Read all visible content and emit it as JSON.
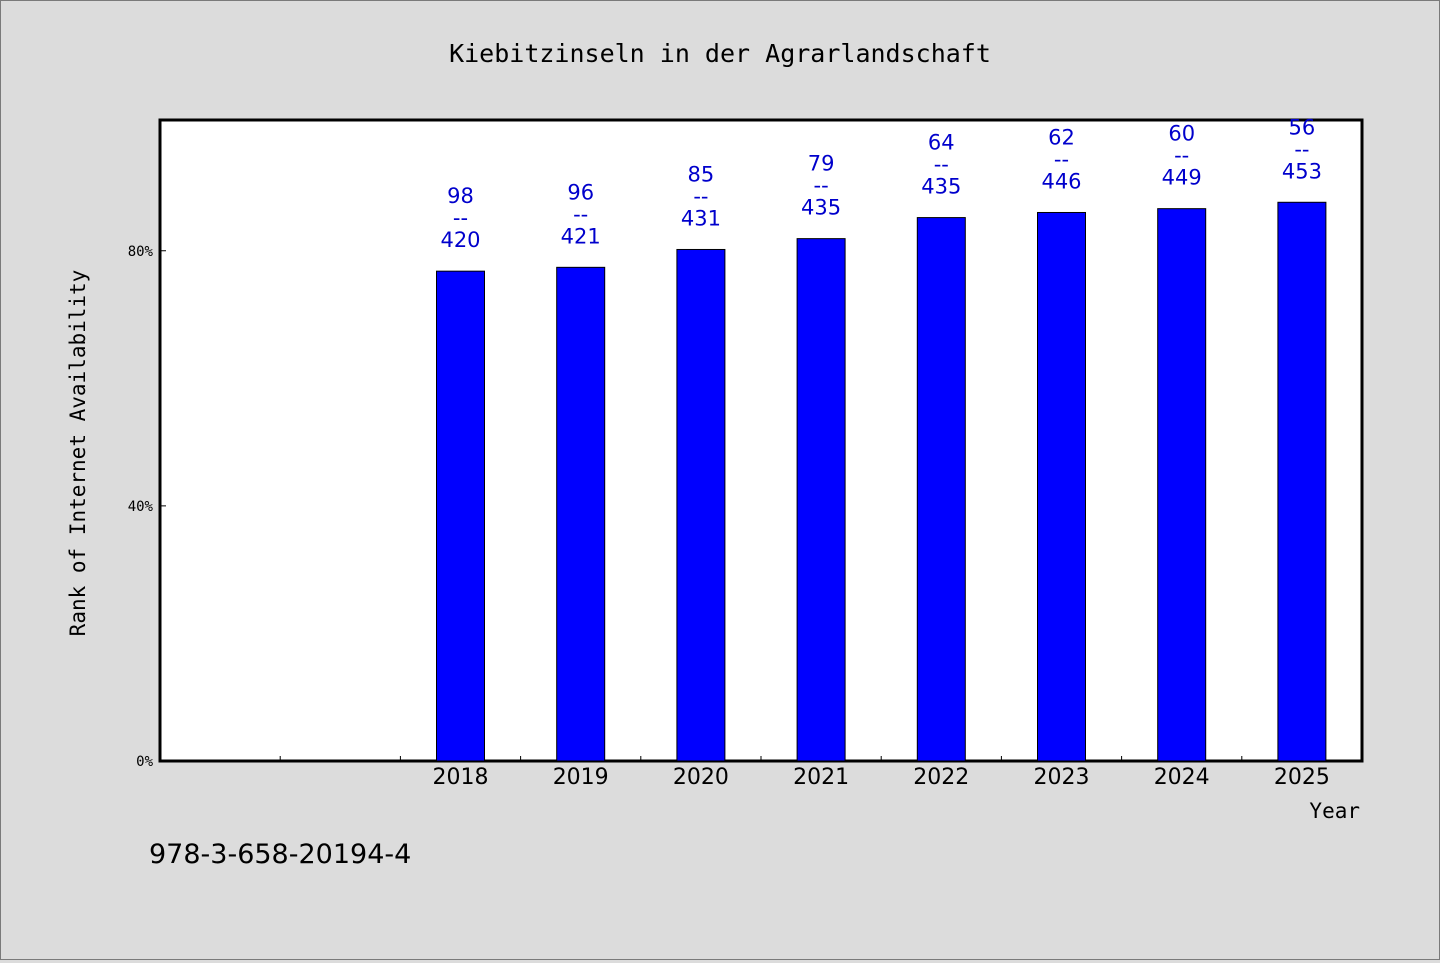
{
  "chart_data": {
    "type": "bar",
    "title": "Kiebitzinseln in der Agrarlandschaft",
    "xlabel": "Year",
    "ylabel": "Rank of Internet Availability",
    "categories": [
      "",
      "",
      "2018",
      "2019",
      "2020",
      "2021",
      "2022",
      "2023",
      "2024",
      "2025"
    ],
    "values": [
      null,
      null,
      76.8,
      77.4,
      80.2,
      81.9,
      85.2,
      86.0,
      86.6,
      87.6
    ],
    "bar_labels": [
      null,
      null,
      {
        "rank": "98",
        "sep": "--",
        "total": "420"
      },
      {
        "rank": "96",
        "sep": "--",
        "total": "421"
      },
      {
        "rank": "85",
        "sep": "--",
        "total": "431"
      },
      {
        "rank": "79",
        "sep": "--",
        "total": "435"
      },
      {
        "rank": "64",
        "sep": "--",
        "total": "435"
      },
      {
        "rank": "62",
        "sep": "--",
        "total": "446"
      },
      {
        "rank": "60",
        "sep": "--",
        "total": "449"
      },
      {
        "rank": "56",
        "sep": "--",
        "total": "453"
      }
    ],
    "yticks": [
      {
        "value": 0,
        "label": "0%"
      },
      {
        "value": 40,
        "label": "40%"
      },
      {
        "value": 80,
        "label": "80%"
      }
    ],
    "ylim": [
      0,
      100.5
    ],
    "grid": false,
    "legend": "none",
    "colors": {
      "bar": "#0000ff",
      "label": "#0000cc",
      "plot_bg": "#ffffff",
      "page_bg": "#dcdcdc"
    }
  },
  "footer": {
    "isbn": "978-3-658-20194-4"
  }
}
